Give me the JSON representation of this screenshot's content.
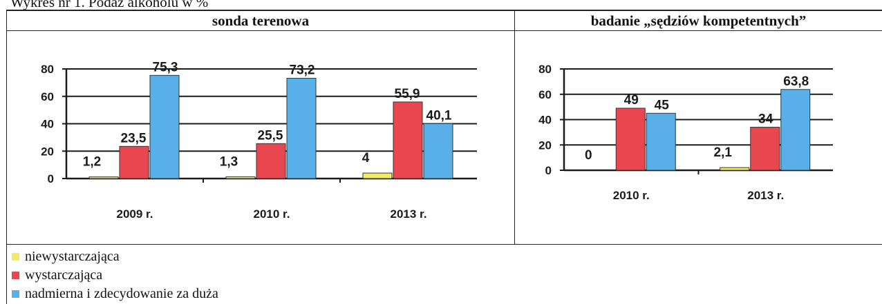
{
  "page": {
    "title": "Wykres nr 1. Podaż alkoholu w %"
  },
  "colors": {
    "niewystarczajaca": "#f2ec64",
    "wystarczajaca": "#e8474f",
    "nadmierna": "#59b0e8",
    "frame": "#222222"
  },
  "legend": {
    "items": [
      {
        "label": "niewystarczająca",
        "color": "#f2ec64"
      },
      {
        "label": "wystarczająca",
        "color": "#e8474f"
      },
      {
        "label": "nadmierna i zdecydowanie za duża",
        "color": "#59b0e8"
      }
    ]
  },
  "chart_data": [
    {
      "type": "bar",
      "title": "sonda terenowa",
      "categories": [
        "2009 r.",
        "2010 r.",
        "2013 r."
      ],
      "series": [
        {
          "name": "niewystarczająca",
          "values": [
            1.2,
            1.3,
            4
          ],
          "labels": [
            "1,2",
            "1,3",
            "4"
          ]
        },
        {
          "name": "wystarczająca",
          "values": [
            23.5,
            25.5,
            55.9
          ],
          "labels": [
            "23,5",
            "25,5",
            "55,9"
          ]
        },
        {
          "name": "nadmierna i zdecydowanie za duża",
          "values": [
            75.3,
            73.2,
            40.1
          ],
          "labels": [
            "75,3",
            "73,2",
            "40,1"
          ]
        }
      ],
      "ylim": [
        0,
        80
      ],
      "yticks": [
        "0",
        "20",
        "40",
        "60",
        "80"
      ],
      "grid": true,
      "legend": "bottom"
    },
    {
      "type": "bar",
      "title": "badanie „sędziów kompetentnych”",
      "categories": [
        "2010 r.",
        "2013 r."
      ],
      "series": [
        {
          "name": "niewystarczająca",
          "values": [
            0,
            2.1
          ],
          "labels": [
            "0",
            "2,1"
          ]
        },
        {
          "name": "wystarczająca",
          "values": [
            49,
            34
          ],
          "labels": [
            "49",
            "34"
          ]
        },
        {
          "name": "nadmierna i zdecydowanie za duża",
          "values": [
            45,
            63.8
          ],
          "labels": [
            "45",
            "63,8"
          ]
        }
      ],
      "ylim": [
        0,
        80
      ],
      "yticks": [
        "0",
        "20",
        "40",
        "60",
        "80"
      ],
      "grid": true,
      "legend": "bottom"
    }
  ]
}
